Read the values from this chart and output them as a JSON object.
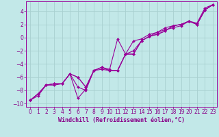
{
  "title": "",
  "xlabel": "Windchill (Refroidissement éolien,°C)",
  "ylabel": "",
  "xlim": [
    -0.5,
    23.5
  ],
  "ylim": [
    -10.5,
    5.5
  ],
  "bg_color": "#c2e8e8",
  "line_color": "#990099",
  "grid_color": "#a8d0d0",
  "xticks": [
    0,
    1,
    2,
    3,
    4,
    5,
    6,
    7,
    8,
    9,
    10,
    11,
    12,
    13,
    14,
    15,
    16,
    17,
    18,
    19,
    20,
    21,
    22,
    23
  ],
  "yticks": [
    -10,
    -8,
    -6,
    -4,
    -2,
    0,
    2,
    4
  ],
  "series": [
    [
      [
        0,
        -9.5
      ],
      [
        1,
        -8.5
      ],
      [
        2,
        -7.2
      ],
      [
        3,
        -7.0
      ],
      [
        4,
        -7.0
      ],
      [
        5,
        -5.5
      ],
      [
        6,
        -7.5
      ],
      [
        7,
        -8.0
      ],
      [
        8,
        -5.0
      ],
      [
        9,
        -4.5
      ],
      [
        10,
        -5.0
      ],
      [
        11,
        -5.0
      ],
      [
        12,
        -2.5
      ],
      [
        13,
        -2.0
      ],
      [
        14,
        -0.5
      ],
      [
        15,
        0.2
      ],
      [
        16,
        0.8
      ],
      [
        17,
        1.2
      ],
      [
        18,
        1.5
      ],
      [
        19,
        1.8
      ],
      [
        20,
        2.5
      ],
      [
        21,
        2.0
      ],
      [
        22,
        4.2
      ],
      [
        23,
        5.0
      ]
    ],
    [
      [
        0,
        -9.5
      ],
      [
        1,
        -8.5
      ],
      [
        2,
        -7.2
      ],
      [
        3,
        -7.0
      ],
      [
        4,
        -7.0
      ],
      [
        5,
        -5.5
      ],
      [
        6,
        -9.2
      ],
      [
        7,
        -7.8
      ],
      [
        8,
        -5.0
      ],
      [
        9,
        -4.5
      ],
      [
        10,
        -4.8
      ],
      [
        11,
        -0.2
      ],
      [
        12,
        -2.5
      ],
      [
        13,
        -0.5
      ],
      [
        14,
        -0.2
      ],
      [
        15,
        0.5
      ],
      [
        16,
        0.8
      ],
      [
        17,
        1.5
      ],
      [
        18,
        1.8
      ],
      [
        19,
        2.0
      ],
      [
        20,
        2.5
      ],
      [
        21,
        2.2
      ],
      [
        22,
        4.5
      ],
      [
        23,
        5.0
      ]
    ],
    [
      [
        0,
        -9.5
      ],
      [
        1,
        -8.5
      ],
      [
        2,
        -7.2
      ],
      [
        3,
        -7.0
      ],
      [
        4,
        -7.0
      ],
      [
        5,
        -5.5
      ],
      [
        6,
        -6.0
      ],
      [
        7,
        -7.5
      ],
      [
        8,
        -5.0
      ],
      [
        9,
        -4.8
      ],
      [
        10,
        -5.0
      ],
      [
        11,
        -5.0
      ],
      [
        12,
        -2.5
      ],
      [
        13,
        -2.5
      ],
      [
        14,
        -0.5
      ],
      [
        15,
        0.2
      ],
      [
        16,
        0.5
      ],
      [
        17,
        1.0
      ],
      [
        18,
        1.8
      ],
      [
        19,
        2.0
      ],
      [
        20,
        2.5
      ],
      [
        21,
        2.0
      ],
      [
        22,
        4.2
      ],
      [
        23,
        5.0
      ]
    ],
    [
      [
        0,
        -9.5
      ],
      [
        1,
        -8.8
      ],
      [
        2,
        -7.2
      ],
      [
        3,
        -7.2
      ],
      [
        4,
        -7.0
      ],
      [
        5,
        -5.5
      ],
      [
        6,
        -6.0
      ],
      [
        7,
        -7.5
      ],
      [
        8,
        -5.0
      ],
      [
        9,
        -4.5
      ],
      [
        10,
        -5.0
      ],
      [
        11,
        -5.0
      ],
      [
        12,
        -2.5
      ],
      [
        13,
        -2.5
      ],
      [
        14,
        -0.5
      ],
      [
        15,
        0.2
      ],
      [
        16,
        0.5
      ],
      [
        17,
        1.0
      ],
      [
        18,
        1.8
      ],
      [
        19,
        2.0
      ],
      [
        20,
        2.5
      ],
      [
        21,
        2.0
      ],
      [
        22,
        4.2
      ],
      [
        23,
        5.0
      ]
    ]
  ],
  "marker": "D",
  "markersize": 2,
  "linewidth": 0.8,
  "xlabel_fontsize": 6,
  "tick_fontsize": 5.5,
  "tick_color": "#880088",
  "xlabel_color": "#880088"
}
